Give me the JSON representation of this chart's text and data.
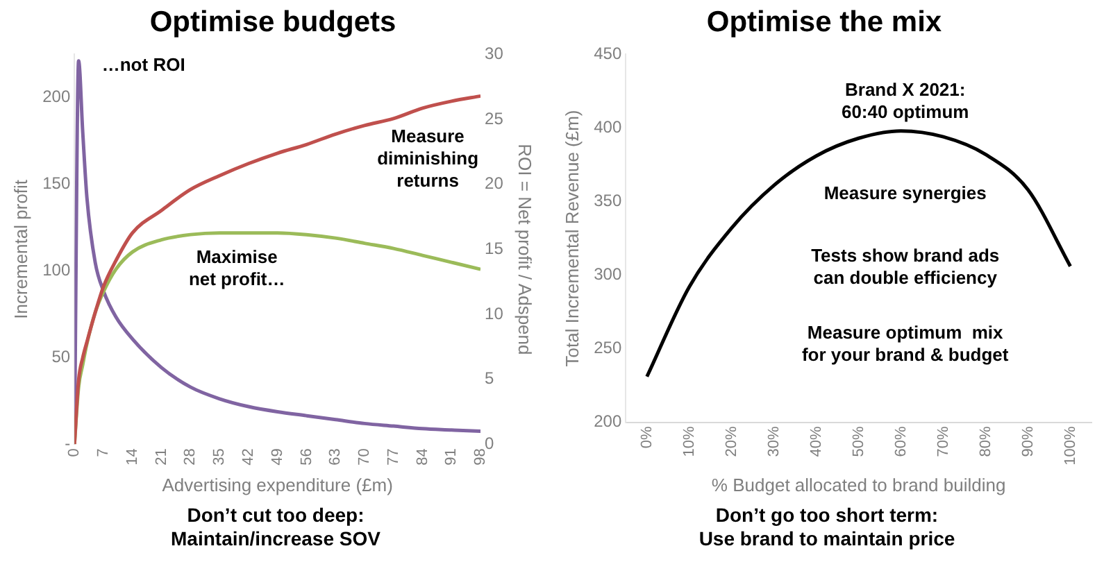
{
  "chart_data": [
    {
      "type": "line",
      "title": "Optimise budgets",
      "xlabel": "Advertising expenditure (£m)",
      "ylabel": "Incremental profit",
      "y2label": "ROI = Net profit / Adspend",
      "x": [
        0,
        1,
        2,
        3,
        5,
        7,
        10,
        14,
        21,
        28,
        35,
        42,
        49,
        56,
        63,
        70,
        77,
        84,
        91,
        98
      ],
      "xlim": [
        0,
        98
      ],
      "xticks": [
        0,
        7,
        14,
        21,
        28,
        35,
        42,
        49,
        56,
        63,
        70,
        77,
        84,
        91,
        98
      ],
      "ylim": [
        0,
        225
      ],
      "yticks": [
        {
          "value": 0,
          "label": "-"
        },
        50,
        100,
        150,
        200
      ],
      "y2lim": [
        0,
        30
      ],
      "y2ticks": [
        0,
        5,
        10,
        15,
        20,
        25,
        30
      ],
      "grid": false,
      "legend": false,
      "marker": "none",
      "line_style": "solid",
      "series": [
        {
          "color": "#c0504d",
          "values": [
            0,
            37,
            50,
            59,
            76,
            91,
            106,
            122,
            135,
            147,
            155,
            162,
            168,
            173,
            179,
            184,
            188,
            194,
            198,
            201
          ]
        },
        {
          "color": "#9bbb59",
          "values": [
            0,
            33,
            46,
            58,
            76,
            88,
            101,
            111,
            118,
            121,
            122,
            122,
            122,
            121,
            119,
            116,
            113,
            109,
            105,
            101
          ]
        },
        {
          "color": "#8064a2",
          "axis": "y2",
          "values": [
            0,
            29.5,
            24,
            19,
            14,
            11.8,
            9.8,
            8.1,
            5.9,
            4.4,
            3.5,
            2.9,
            2.5,
            2.2,
            1.9,
            1.6,
            1.4,
            1.2,
            1.1,
            1.0
          ]
        }
      ],
      "annotations": [
        "…not ROI",
        "Measure\ndiminishing\nreturns",
        "Maximise\nnet profit…",
        "Don’t cut too deep:\nMaintain/increase SOV"
      ]
    },
    {
      "type": "line",
      "title": "Optimise the mix",
      "xlabel": "% Budget allocated to brand building",
      "ylabel": "Total Incremental Revenue (£m)",
      "categories": [
        "0%",
        "10%",
        "20%",
        "30%",
        "40%",
        "50%",
        "60%",
        "70%",
        "80%",
        "90%",
        "100%"
      ],
      "ylim": [
        200,
        450
      ],
      "yticks": [
        200,
        250,
        300,
        350,
        400,
        450
      ],
      "grid": false,
      "legend": false,
      "marker": "none",
      "line_style": "solid",
      "series": [
        {
          "color": "#000000",
          "values": [
            231,
            292,
            332,
            361,
            381,
            393,
            398,
            394,
            382,
            358,
            306
          ]
        }
      ],
      "annotations": [
        "Brand X 2021:\n60:40 optimum",
        "Measure synergies",
        "Tests show brand ads\ncan double efficiency",
        "Measure optimum  mix\nfor your brand & budget",
        "Don’t go too short term:\nUse brand to maintain price"
      ]
    }
  ]
}
